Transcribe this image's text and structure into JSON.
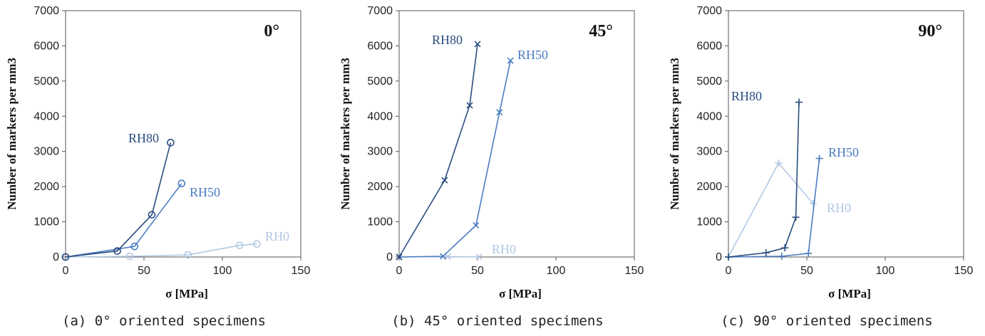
{
  "colors": {
    "RH80": "#2a4d80",
    "RH50": "#4a7cc0",
    "RH0": "#b2c8e4"
  },
  "chart_data": [
    {
      "type": "line",
      "title": "0°",
      "caption": "(a) 0° oriented specimens",
      "xlabel": "σ [MPa]",
      "ylabel": "Number of markers per mm3",
      "xlim": [
        0,
        150
      ],
      "ylim": [
        0,
        7000
      ],
      "xticks": [
        "0",
        "50",
        "100",
        "150"
      ],
      "yticks": [
        "0",
        "1000",
        "2000",
        "3000",
        "4000",
        "5000",
        "6000",
        "7000"
      ],
      "grid": false,
      "series": [
        {
          "name": "RH80",
          "marker": "circle",
          "x": [
            0,
            33,
            55,
            67
          ],
          "y": [
            0,
            170,
            1200,
            3250
          ]
        },
        {
          "name": "RH50",
          "marker": "circle",
          "x": [
            0,
            44,
            74
          ],
          "y": [
            0,
            300,
            2090
          ]
        },
        {
          "name": "RH0",
          "marker": "circle",
          "x": [
            0,
            41,
            78,
            111,
            122
          ],
          "y": [
            0,
            20,
            60,
            330,
            370
          ]
        }
      ]
    },
    {
      "type": "line",
      "title": "45°",
      "caption": "(b) 45° oriented specimens",
      "xlabel": "σ [MPa]",
      "ylabel": "Number of markers per mm3",
      "xlim": [
        0,
        150
      ],
      "ylim": [
        0,
        7000
      ],
      "xticks": [
        "0",
        "50",
        "100",
        "150"
      ],
      "yticks": [
        "0",
        "1000",
        "2000",
        "3000",
        "4000",
        "5000",
        "6000",
        "7000"
      ],
      "grid": false,
      "series": [
        {
          "name": "RH80",
          "marker": "x",
          "x": [
            0,
            29,
            45,
            50
          ],
          "y": [
            0,
            2180,
            4310,
            6050
          ]
        },
        {
          "name": "RH50",
          "marker": "x",
          "x": [
            0,
            28,
            49,
            64,
            71
          ],
          "y": [
            0,
            20,
            900,
            4110,
            5580
          ]
        },
        {
          "name": "RH0",
          "marker": "x",
          "x": [
            0,
            31,
            51
          ],
          "y": [
            0,
            10,
            5
          ]
        }
      ]
    },
    {
      "type": "line",
      "title": "90°",
      "caption": "(c) 90° oriented specimens",
      "xlabel": "σ [MPa]",
      "ylabel": "Number of markers per mm3",
      "xlim": [
        0,
        150
      ],
      "ylim": [
        0,
        7000
      ],
      "xticks": [
        "0",
        "50",
        "100",
        "150"
      ],
      "yticks": [
        "0",
        "1000",
        "2000",
        "3000",
        "4000",
        "5000",
        "6000",
        "7000"
      ],
      "grid": false,
      "series": [
        {
          "name": "RH80",
          "marker": "plus",
          "x": [
            0,
            24,
            36,
            43,
            45
          ],
          "y": [
            0,
            120,
            260,
            1130,
            4400
          ]
        },
        {
          "name": "RH50",
          "marker": "plus",
          "x": [
            0,
            34,
            51,
            58
          ],
          "y": [
            0,
            20,
            100,
            2800
          ]
        },
        {
          "name": "RH0",
          "marker": "plus",
          "x": [
            0,
            32,
            54
          ],
          "y": [
            0,
            2670,
            1520
          ]
        }
      ]
    }
  ]
}
